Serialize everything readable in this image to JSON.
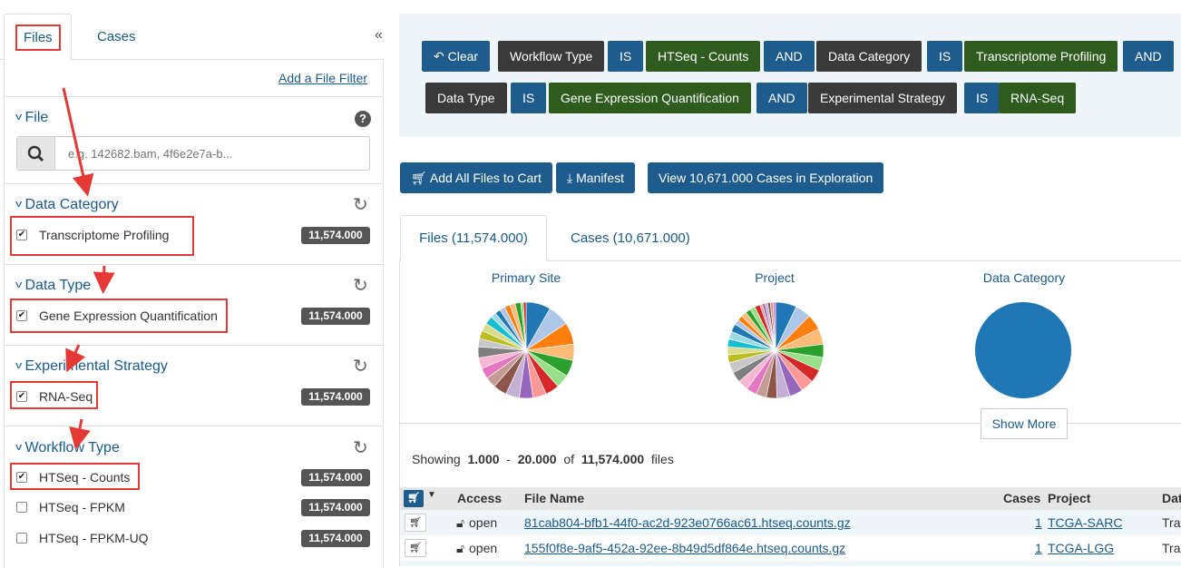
{
  "left_tabs": {
    "files": "Files",
    "cases": "Cases",
    "collapse": "«"
  },
  "add_file_filter": "Add a File Filter",
  "file_facet": {
    "title": "File",
    "placeholder": "e.g. 142682.bam, 4f6e2e7a-b..."
  },
  "facets": {
    "data_category": {
      "title": "Data Category",
      "items": [
        {
          "label": "Transcriptome Profiling",
          "count": "11,574.000",
          "checked": true
        }
      ]
    },
    "data_type": {
      "title": "Data Type",
      "items": [
        {
          "label": "Gene Expression Quantification",
          "count": "11,574.000",
          "checked": true
        }
      ]
    },
    "experimental_strategy": {
      "title": "Experimental Strategy",
      "items": [
        {
          "label": "RNA-Seq",
          "count": "11,574.000",
          "checked": true
        }
      ]
    },
    "workflow_type": {
      "title": "Workflow Type",
      "items": [
        {
          "label": "HTSeq - Counts",
          "count": "11,574.000",
          "checked": true
        },
        {
          "label": "HTSeq - FPKM",
          "count": "11,574.000",
          "checked": false
        },
        {
          "label": "HTSeq - FPKM-UQ",
          "count": "11,574.000",
          "checked": false
        }
      ]
    }
  },
  "query": {
    "clear": "Clear",
    "pills": [
      "Workflow Type",
      "IS",
      "HTSeq - Counts",
      "AND",
      "Data Category",
      "IS",
      "Transcriptome Profiling",
      "AND",
      "Data Type",
      "IS",
      "Gene Expression Quantification",
      "AND",
      "Experimental Strategy",
      "IS",
      "RNA-Seq"
    ]
  },
  "actions": {
    "add_all": "Add All Files to Cart",
    "manifest": "Manifest",
    "view_cases": "View 10,671.000 Cases in Exploration"
  },
  "result_tabs": {
    "files": "Files (11,574.000)",
    "cases": "Cases (10,671.000)"
  },
  "pies": {
    "primary_site": "Primary Site",
    "project": "Project",
    "data_category": "Data Category",
    "show_more": "Show More"
  },
  "showing": {
    "prefix": "Showing",
    "from": "1.000",
    "dash": "-",
    "to": "20.000",
    "of": "of",
    "total": "11,574.000",
    "suffix": "files"
  },
  "table": {
    "headers": {
      "access": "Access",
      "file_name": "File Name",
      "cases": "Cases",
      "project": "Project",
      "data": "Dat"
    },
    "rows": [
      {
        "access": "open",
        "file_name": "81cab804-bfb1-44f0-ac2d-923e0766ac61.htseq.counts.gz",
        "cases": "1",
        "project": "TCGA-SARC",
        "data": "Tra"
      },
      {
        "access": "open",
        "file_name": "155f0f8e-9af5-452a-92ee-8b49d5df864e.htseq.counts.gz",
        "cases": "1",
        "project": "TCGA-LGG",
        "data": "Tra"
      }
    ]
  },
  "colors": {
    "primary_blue": "#1d5c8c",
    "dark_pill": "#3a3a3a",
    "green_pill": "#2e5b1e",
    "annotation_red": "#e53935",
    "pie_blue": "#1f77b4"
  }
}
